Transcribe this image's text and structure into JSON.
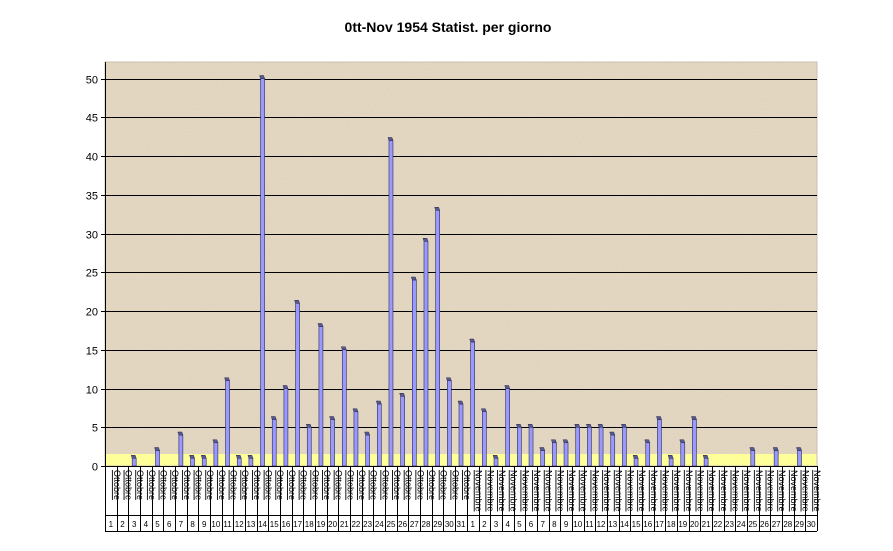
{
  "chart_data": {
    "type": "bar",
    "title": "0tt-Nov 1954 Statist. per giorno",
    "xlabel": "",
    "ylabel": "",
    "ylim": [
      0,
      52
    ],
    "yticks": [
      0,
      5,
      10,
      15,
      20,
      25,
      30,
      35,
      40,
      45,
      50
    ],
    "grid": true,
    "legend": "none",
    "colors": {
      "bar_fill": "#9999ff",
      "bar_top": "#5a5a8e",
      "plot_background": "#e8dcc6",
      "floor": "#ffff99",
      "grid": "#000000"
    },
    "categories": [
      {
        "month": "Ottobre",
        "day": "1"
      },
      {
        "month": "Ottobre",
        "day": "2"
      },
      {
        "month": "Ottobre",
        "day": "3"
      },
      {
        "month": "Ottobre",
        "day": "4"
      },
      {
        "month": "Ottobre",
        "day": "5"
      },
      {
        "month": "Ottobre",
        "day": "6"
      },
      {
        "month": "Ottobre",
        "day": "7"
      },
      {
        "month": "Ottobre",
        "day": "8"
      },
      {
        "month": "Ottobre",
        "day": "9"
      },
      {
        "month": "Ottobre",
        "day": "10"
      },
      {
        "month": "Ottobre",
        "day": "11"
      },
      {
        "month": "Ottobre",
        "day": "12"
      },
      {
        "month": "Ottobre",
        "day": "13"
      },
      {
        "month": "Ottobre",
        "day": "14"
      },
      {
        "month": "Ottobre",
        "day": "15"
      },
      {
        "month": "Ottobre",
        "day": "16"
      },
      {
        "month": "Ottobre",
        "day": "17"
      },
      {
        "month": "Ottobre",
        "day": "18"
      },
      {
        "month": "Ottobre",
        "day": "19"
      },
      {
        "month": "Ottobre",
        "day": "20"
      },
      {
        "month": "Ottobre",
        "day": "21"
      },
      {
        "month": "Ottobre",
        "day": "22"
      },
      {
        "month": "Ottobre",
        "day": "23"
      },
      {
        "month": "Ottobre",
        "day": "24"
      },
      {
        "month": "Ottobre",
        "day": "25"
      },
      {
        "month": "Ottobre",
        "day": "26"
      },
      {
        "month": "Ottobre",
        "day": "27"
      },
      {
        "month": "Ottobre",
        "day": "28"
      },
      {
        "month": "Ottobre",
        "day": "29"
      },
      {
        "month": "Ottobre",
        "day": "30"
      },
      {
        "month": "Ottobre",
        "day": "31"
      },
      {
        "month": "Novembre",
        "day": "1"
      },
      {
        "month": "Novembre",
        "day": "2"
      },
      {
        "month": "Novembre",
        "day": "3"
      },
      {
        "month": "Novembre",
        "day": "4"
      },
      {
        "month": "Novembre",
        "day": "5"
      },
      {
        "month": "Novembre",
        "day": "6"
      },
      {
        "month": "Novembre",
        "day": "7"
      },
      {
        "month": "Novembre",
        "day": "8"
      },
      {
        "month": "Novembre",
        "day": "9"
      },
      {
        "month": "Novembre",
        "day": "10"
      },
      {
        "month": "Novembre",
        "day": "11"
      },
      {
        "month": "Novembre",
        "day": "12"
      },
      {
        "month": "Novembre",
        "day": "13"
      },
      {
        "month": "Novembre",
        "day": "14"
      },
      {
        "month": "Novembre",
        "day": "15"
      },
      {
        "month": "Novembre",
        "day": "16"
      },
      {
        "month": "Novembre",
        "day": "17"
      },
      {
        "month": "Novembre",
        "day": "18"
      },
      {
        "month": "Novembre",
        "day": "19"
      },
      {
        "month": "Novembre",
        "day": "20"
      },
      {
        "month": "Novembre",
        "day": "21"
      },
      {
        "month": "Novembre",
        "day": "22"
      },
      {
        "month": "Novembre",
        "day": "23"
      },
      {
        "month": "Novembre",
        "day": "24"
      },
      {
        "month": "Novembre",
        "day": "25"
      },
      {
        "month": "Novembre",
        "day": "26"
      },
      {
        "month": "Novembre",
        "day": "27"
      },
      {
        "month": "Novembre",
        "day": "28"
      },
      {
        "month": "Novembre",
        "day": "29"
      },
      {
        "month": "Novembre",
        "day": "30"
      }
    ],
    "values": [
      0,
      0,
      1,
      0,
      2,
      0,
      4,
      1,
      1,
      3,
      11,
      1,
      1,
      50,
      6,
      10,
      21,
      5,
      18,
      6,
      15,
      7,
      4,
      8,
      42,
      9,
      24,
      29,
      33,
      11,
      8,
      16,
      7,
      1,
      10,
      5,
      5,
      2,
      3,
      3,
      5,
      5,
      5,
      4,
      5,
      1,
      3,
      6,
      1,
      3,
      6,
      1,
      0,
      0,
      0,
      2,
      0,
      2,
      0,
      2,
      0
    ]
  }
}
